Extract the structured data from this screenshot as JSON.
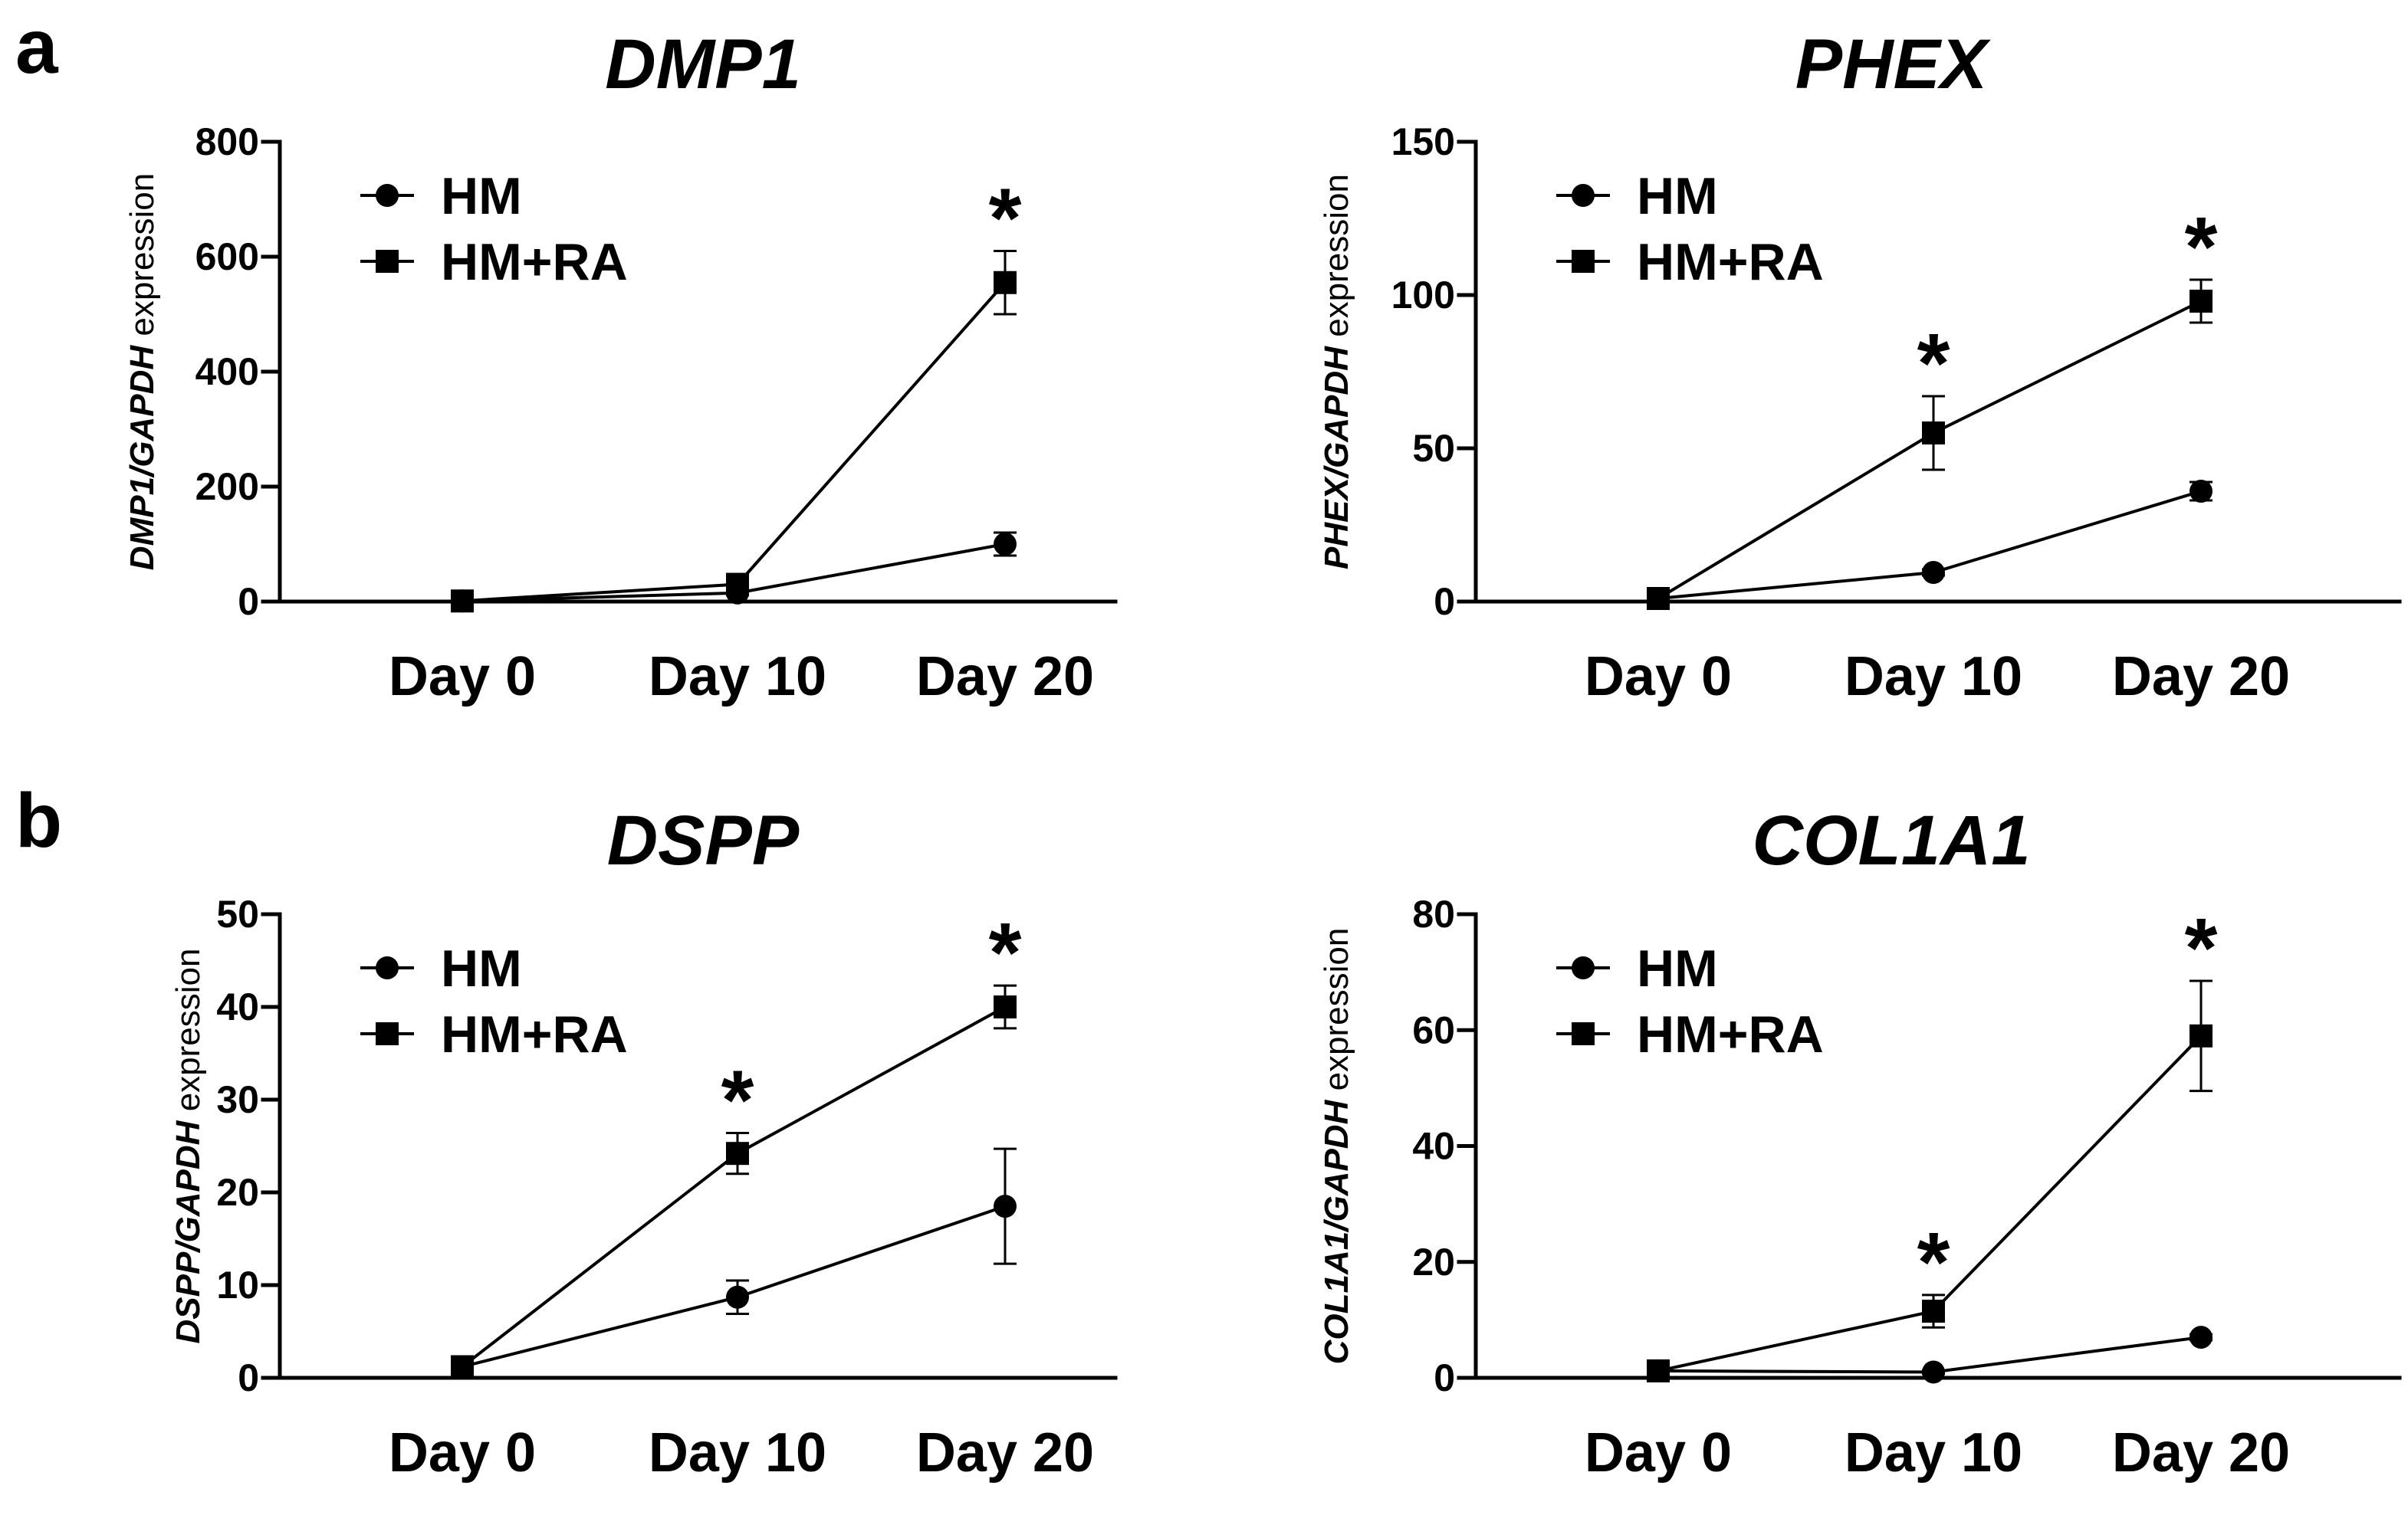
{
  "panel_letters": [
    "a",
    "b"
  ],
  "chart_data": [
    {
      "type": "line",
      "panel": "a",
      "title": "DMP1",
      "ylabel_gene": "DMP1/GAPDH",
      "ylabel_suffix": "expression",
      "xlabel": "",
      "categories": [
        "Day 0",
        "Day 10",
        "Day 20"
      ],
      "ylim": [
        0,
        800
      ],
      "yticks": [
        0,
        200,
        400,
        600,
        800
      ],
      "legend_position": "top-left",
      "series": [
        {
          "name": "HM",
          "marker": "circle",
          "values": [
            1,
            15,
            100
          ],
          "errors": [
            0,
            4,
            20
          ]
        },
        {
          "name": "HM+RA",
          "marker": "square",
          "values": [
            1,
            30,
            555
          ],
          "errors": [
            0,
            8,
            55
          ]
        }
      ],
      "significance": [
        {
          "category": "Day 20",
          "label": "*"
        }
      ]
    },
    {
      "type": "line",
      "panel": "a",
      "title": "PHEX",
      "ylabel_gene": "PHEX/GAPDH",
      "ylabel_suffix": "expression",
      "xlabel": "",
      "categories": [
        "Day 0",
        "Day 10",
        "Day 20"
      ],
      "ylim": [
        0,
        150
      ],
      "yticks": [
        0,
        50,
        100,
        150
      ],
      "legend_position": "top-left",
      "series": [
        {
          "name": "HM",
          "marker": "circle",
          "values": [
            1,
            9.5,
            36
          ],
          "errors": [
            0,
            1,
            3
          ]
        },
        {
          "name": "HM+RA",
          "marker": "square",
          "values": [
            1,
            55,
            98
          ],
          "errors": [
            0,
            12,
            7
          ]
        }
      ],
      "significance": [
        {
          "category": "Day 10",
          "label": "*"
        },
        {
          "category": "Day 20",
          "label": "*"
        }
      ]
    },
    {
      "type": "line",
      "panel": "b",
      "title": "DSPP",
      "ylabel_gene": "DSPP/GAPDH",
      "ylabel_suffix": "expression",
      "xlabel": "",
      "categories": [
        "Day 0",
        "Day 10",
        "Day 20"
      ],
      "ylim": [
        0,
        50
      ],
      "yticks": [
        0,
        10,
        20,
        30,
        40,
        50
      ],
      "legend_position": "top-left",
      "series": [
        {
          "name": "HM",
          "marker": "circle",
          "values": [
            1.2,
            8.7,
            18.5
          ],
          "errors": [
            0,
            1.8,
            6.2
          ]
        },
        {
          "name": "HM+RA",
          "marker": "square",
          "values": [
            1.2,
            24.2,
            40
          ],
          "errors": [
            0,
            2.2,
            2.3
          ]
        }
      ],
      "significance": [
        {
          "category": "Day 10",
          "label": "*"
        },
        {
          "category": "Day 20",
          "label": "*"
        }
      ]
    },
    {
      "type": "line",
      "panel": "b",
      "title": "COL1A1",
      "ylabel_gene": "COL1A1/GAPDH",
      "ylabel_suffix": "expression",
      "xlabel": "",
      "categories": [
        "Day 0",
        "Day 10",
        "Day 20"
      ],
      "ylim": [
        0,
        80
      ],
      "yticks": [
        0,
        20,
        40,
        60,
        80
      ],
      "legend_position": "top-left",
      "series": [
        {
          "name": "HM",
          "marker": "circle",
          "values": [
            1.2,
            1,
            7
          ],
          "errors": [
            0,
            0.3,
            0.5
          ]
        },
        {
          "name": "HM+RA",
          "marker": "square",
          "values": [
            1.2,
            11.5,
            59
          ],
          "errors": [
            0,
            2.8,
            9.5
          ]
        }
      ],
      "significance": [
        {
          "category": "Day 10",
          "label": "*"
        },
        {
          "category": "Day 20",
          "label": "*"
        }
      ]
    }
  ]
}
